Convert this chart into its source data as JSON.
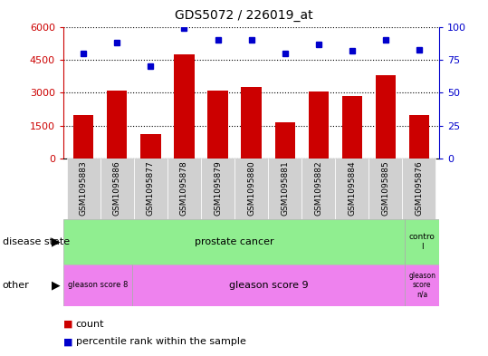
{
  "title": "GDS5072 / 226019_at",
  "samples": [
    "GSM1095883",
    "GSM1095886",
    "GSM1095877",
    "GSM1095878",
    "GSM1095879",
    "GSM1095880",
    "GSM1095881",
    "GSM1095882",
    "GSM1095884",
    "GSM1095885",
    "GSM1095876"
  ],
  "counts": [
    2000,
    3100,
    1100,
    4750,
    3100,
    3250,
    1650,
    3050,
    2850,
    3800,
    2000
  ],
  "percentile_ranks": [
    80,
    88,
    70,
    99,
    90,
    90,
    80,
    87,
    82,
    90,
    83
  ],
  "ylim_left": [
    0,
    6000
  ],
  "ylim_right": [
    0,
    100
  ],
  "yticks_left": [
    0,
    1500,
    3000,
    4500,
    6000
  ],
  "yticks_right": [
    0,
    25,
    50,
    75,
    100
  ],
  "bar_color": "#cc0000",
  "dot_color": "#0000cc",
  "bg_color": "#ffffff",
  "plot_bg": "#ffffff",
  "grid_color": "#000000",
  "green_color": "#90ee90",
  "magenta_color": "#ee82ee",
  "legend_items": [
    {
      "color": "#cc0000",
      "label": "count"
    },
    {
      "color": "#0000cc",
      "label": "percentile rank within the sample"
    }
  ]
}
